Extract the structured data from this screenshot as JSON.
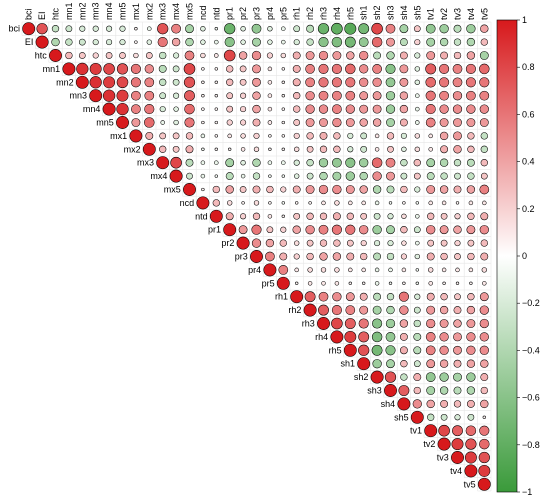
{
  "chart_data": {
    "type": "heatmap",
    "subtype": "correlation-upper-circle",
    "title": "",
    "variables": [
      "bci",
      "EI",
      "htc",
      "mn1",
      "mn2",
      "mn3",
      "mn4",
      "mn5",
      "mx1",
      "mx2",
      "mx3",
      "mx4",
      "mx5",
      "ncd",
      "ntd",
      "pr1",
      "pr2",
      "pr3",
      "pr4",
      "pr5",
      "rh1",
      "rh2",
      "rh3",
      "rh4",
      "rh5",
      "sh1",
      "sh2",
      "sh3",
      "sh4",
      "sh5",
      "tv1",
      "tv2",
      "tv3",
      "tv4",
      "tv5"
    ],
    "colorbar": {
      "ticks": [
        1,
        0.8,
        0.6,
        0.4,
        0.2,
        0,
        -0.2,
        -0.4,
        -0.6,
        -0.8,
        -1
      ],
      "tick_labels": [
        "1",
        "0.8",
        "0.6",
        "0.4",
        "0.2",
        "0",
        "−0.2",
        "−0.4",
        "−0.6",
        "−0.8",
        "−1"
      ],
      "range": [
        -1,
        1
      ],
      "colors": {
        "positive": "#d7191c",
        "zero": "#ffffff",
        "negative": "#3a9a3a"
      }
    },
    "rows": [
      {
        "var": "bci",
        "values": [
          1.0,
          0.75,
          -0.3,
          -0.25,
          -0.2,
          -0.2,
          -0.2,
          -0.2,
          0.05,
          -0.1,
          0.75,
          0.55,
          -0.45,
          -0.15,
          -0.05,
          -0.75,
          -0.15,
          -0.55,
          -0.15,
          -0.1,
          -0.25,
          -0.35,
          -0.75,
          -0.8,
          -0.85,
          -0.7,
          0.8,
          0.55,
          -0.45,
          0.25,
          -0.55,
          -0.5,
          -0.35,
          -0.5,
          0.4
        ]
      },
      {
        "var": "EI",
        "values": [
          1.0,
          -0.4,
          -0.3,
          -0.25,
          -0.2,
          -0.2,
          -0.2,
          0.05,
          -0.15,
          0.6,
          0.4,
          -0.4,
          -0.15,
          -0.1,
          -0.6,
          -0.15,
          -0.45,
          -0.15,
          -0.1,
          -0.2,
          -0.3,
          -0.6,
          -0.65,
          -0.7,
          -0.55,
          0.65,
          0.45,
          -0.35,
          0.2,
          -0.45,
          -0.4,
          -0.3,
          -0.4,
          0.3
        ]
      },
      {
        "var": "htc",
        "values": [
          1.0,
          0.3,
          0.25,
          0.2,
          0.25,
          0.25,
          0.15,
          0.25,
          -0.3,
          -0.2,
          0.55,
          0.15,
          0.1,
          0.8,
          0.4,
          0.5,
          0.2,
          0.15,
          0.35,
          0.45,
          0.5,
          0.45,
          0.4,
          0.5,
          -0.35,
          -0.4,
          0.35,
          -0.2,
          0.45,
          0.35,
          0.3,
          0.4,
          -0.45
        ]
      },
      {
        "var": "mn1",
        "values": [
          1.0,
          0.9,
          0.85,
          0.8,
          0.75,
          0.6,
          0.5,
          -0.35,
          -0.25,
          0.8,
          0.05,
          0.05,
          0.3,
          0.25,
          0.45,
          0.1,
          0.05,
          0.35,
          0.55,
          0.6,
          0.6,
          0.65,
          0.5,
          0.55,
          -0.6,
          0.45,
          -0.15,
          0.7,
          0.6,
          0.55,
          0.6,
          0.65
        ]
      },
      {
        "var": "mn2",
        "values": [
          1.0,
          0.9,
          0.85,
          0.8,
          0.6,
          0.55,
          -0.3,
          -0.25,
          0.75,
          0.05,
          0.05,
          0.3,
          0.25,
          0.45,
          0.1,
          0.05,
          0.35,
          0.55,
          0.6,
          0.6,
          0.6,
          0.5,
          0.5,
          -0.55,
          0.45,
          -0.15,
          0.65,
          0.6,
          0.55,
          0.6,
          0.6
        ]
      },
      {
        "var": "mn3",
        "values": [
          1.0,
          0.9,
          0.85,
          0.55,
          0.55,
          -0.25,
          -0.2,
          0.7,
          0.05,
          0.05,
          0.25,
          0.2,
          0.4,
          0.1,
          0.05,
          0.3,
          0.5,
          0.55,
          0.55,
          0.55,
          0.45,
          0.45,
          -0.5,
          0.4,
          -0.1,
          0.6,
          0.55,
          0.5,
          0.55,
          0.55
        ]
      },
      {
        "var": "mn4",
        "values": [
          1.0,
          0.9,
          0.55,
          0.6,
          -0.2,
          -0.15,
          0.65,
          0.05,
          0.05,
          0.25,
          0.2,
          0.4,
          0.1,
          0.05,
          0.3,
          0.5,
          0.5,
          0.55,
          0.5,
          0.45,
          0.45,
          -0.5,
          0.4,
          -0.1,
          0.6,
          0.5,
          0.5,
          0.5,
          0.5
        ]
      },
      {
        "var": "mn5",
        "values": [
          1.0,
          0.45,
          0.65,
          -0.1,
          -0.15,
          0.6,
          0.05,
          0.05,
          0.2,
          0.2,
          0.35,
          0.1,
          0.05,
          0.25,
          0.45,
          0.45,
          0.5,
          0.45,
          0.4,
          0.4,
          -0.45,
          0.35,
          -0.1,
          0.55,
          0.45,
          0.45,
          0.45,
          0.45
        ]
      },
      {
        "var": "mx1",
        "values": [
          1.0,
          0.35,
          0.25,
          0.25,
          0.3,
          -0.1,
          0.05,
          0.1,
          0.15,
          0.2,
          0.05,
          0.05,
          0.2,
          0.3,
          0.35,
          0.3,
          -0.2,
          -0.25,
          0.1,
          0.3,
          -0.2,
          0.15,
          0.1,
          0.4,
          0.45,
          0.3,
          -0.3
        ]
      },
      {
        "var": "mx2",
        "values": [
          1.0,
          0.3,
          0.25,
          0.35,
          -0.05,
          0.05,
          0.05,
          0.1,
          0.15,
          0.05,
          0.05,
          0.15,
          0.25,
          0.3,
          0.3,
          -0.2,
          -0.25,
          0.1,
          0.25,
          -0.15,
          0.15,
          0.1,
          0.35,
          0.4,
          0.3,
          -0.3
        ]
      },
      {
        "var": "mx3",
        "values": [
          1.0,
          0.8,
          -0.35,
          -0.1,
          -0.1,
          -0.45,
          -0.15,
          -0.4,
          -0.1,
          -0.1,
          -0.2,
          -0.3,
          -0.5,
          -0.55,
          -0.6,
          -0.5,
          0.65,
          0.55,
          -0.3,
          0.3,
          -0.45,
          -0.4,
          -0.3,
          -0.35,
          0.3
        ]
      },
      {
        "var": "mx4",
        "values": [
          1.0,
          -0.25,
          -0.1,
          -0.05,
          -0.35,
          -0.1,
          -0.3,
          -0.05,
          -0.05,
          -0.15,
          -0.25,
          -0.4,
          -0.45,
          -0.5,
          -0.4,
          0.5,
          0.45,
          -0.25,
          0.25,
          -0.35,
          -0.3,
          -0.25,
          -0.3,
          0.25
        ]
      },
      {
        "var": "mx5",
        "values": [
          1.0,
          0.05,
          0.3,
          0.4,
          0.25,
          0.35,
          0.3,
          0.2,
          0.35,
          0.45,
          0.5,
          0.5,
          0.45,
          0.4,
          -0.4,
          -0.35,
          0.3,
          -0.2,
          0.45,
          0.4,
          0.35,
          0.4,
          0.55
        ]
      },
      {
        "var": "ncd",
        "values": [
          1.0,
          0.3,
          0.15,
          0.05,
          0.15,
          0.05,
          -0.05,
          0.05,
          0.05,
          0.1,
          0.15,
          0.1,
          0.1,
          -0.1,
          -0.05,
          0.05,
          -0.05,
          0.1,
          0.1,
          0.05,
          0.1,
          0.1
        ]
      },
      {
        "var": "ntd",
        "values": [
          1.0,
          0.35,
          0.2,
          0.3,
          0.1,
          0.05,
          0.25,
          0.3,
          0.3,
          0.35,
          0.3,
          0.25,
          -0.25,
          -0.2,
          0.15,
          -0.1,
          0.3,
          0.25,
          0.2,
          0.3,
          0.35
        ]
      },
      {
        "var": "pr1",
        "values": [
          1.0,
          0.45,
          0.6,
          0.25,
          0.2,
          0.4,
          0.5,
          0.55,
          0.6,
          0.6,
          0.5,
          -0.5,
          -0.45,
          0.3,
          -0.25,
          0.5,
          0.45,
          0.4,
          0.45,
          0.5
        ]
      },
      {
        "var": "pr2",
        "values": [
          1.0,
          0.5,
          0.4,
          0.3,
          0.15,
          0.25,
          0.3,
          0.3,
          0.25,
          0.2,
          -0.2,
          -0.2,
          0.15,
          -0.1,
          0.25,
          0.25,
          0.2,
          0.25,
          0.3
        ]
      },
      {
        "var": "pr3",
        "values": [
          1.0,
          0.55,
          0.35,
          0.2,
          0.3,
          0.4,
          0.4,
          0.35,
          0.3,
          -0.35,
          -0.3,
          0.2,
          -0.15,
          0.35,
          0.3,
          0.25,
          0.3,
          0.35
        ]
      },
      {
        "var": "pr4",
        "values": [
          1.0,
          0.55,
          0.1,
          0.15,
          0.15,
          0.15,
          0.1,
          0.1,
          -0.1,
          -0.1,
          0.1,
          -0.05,
          0.15,
          0.1,
          0.1,
          0.1,
          0.15
        ]
      },
      {
        "var": "pr5",
        "values": [
          1.0,
          0.05,
          0.1,
          0.1,
          0.1,
          0.05,
          0.05,
          -0.1,
          -0.05,
          0.05,
          -0.05,
          0.1,
          0.05,
          0.05,
          0.05,
          0.1
        ]
      },
      {
        "var": "rh1",
        "values": [
          1.0,
          0.7,
          0.55,
          0.5,
          0.45,
          0.35,
          -0.35,
          -0.3,
          0.6,
          -0.2,
          0.35,
          0.3,
          0.25,
          0.3,
          0.45
        ]
      },
      {
        "var": "rh2",
        "values": [
          1.0,
          0.7,
          0.6,
          0.55,
          0.45,
          -0.45,
          -0.4,
          0.5,
          -0.25,
          0.45,
          0.4,
          0.35,
          0.4,
          0.5
        ]
      },
      {
        "var": "rh3",
        "values": [
          1.0,
          0.8,
          0.7,
          0.6,
          -0.6,
          -0.5,
          0.4,
          -0.3,
          0.5,
          0.45,
          0.4,
          0.45,
          0.5
        ]
      },
      {
        "var": "rh4",
        "values": [
          1.0,
          0.85,
          0.7,
          -0.65,
          -0.55,
          0.35,
          -0.35,
          0.55,
          0.5,
          0.45,
          0.5,
          0.5
        ]
      },
      {
        "var": "rh5",
        "values": [
          1.0,
          0.75,
          -0.7,
          -0.6,
          0.35,
          -0.35,
          0.55,
          0.5,
          0.45,
          0.5,
          0.5
        ]
      },
      {
        "var": "sh1",
        "values": [
          1.0,
          -0.5,
          -0.45,
          0.3,
          -0.25,
          0.45,
          0.4,
          0.35,
          0.4,
          0.4
        ]
      },
      {
        "var": "sh2",
        "values": [
          1.0,
          0.75,
          -0.3,
          0.35,
          -0.55,
          -0.5,
          -0.45,
          -0.5,
          0.35
        ]
      },
      {
        "var": "sh3",
        "values": [
          1.0,
          0.7,
          0.3,
          -0.45,
          -0.4,
          -0.35,
          -0.4,
          0.3
        ]
      },
      {
        "var": "sh4",
        "values": [
          1.0,
          0.5,
          0.4,
          0.35,
          0.3,
          0.35,
          0.4
        ]
      },
      {
        "var": "sh5",
        "values": [
          1.0,
          -0.3,
          -0.25,
          -0.2,
          -0.25,
          0.05
        ]
      },
      {
        "var": "tv1",
        "values": [
          1.0,
          0.8,
          0.7,
          0.65,
          0.6
        ]
      },
      {
        "var": "tv2",
        "values": [
          1.0,
          0.85,
          0.75,
          0.65
        ]
      },
      {
        "var": "tv3",
        "values": [
          1.0,
          0.85,
          0.75
        ]
      },
      {
        "var": "tv4",
        "values": [
          1.0,
          0.85
        ]
      },
      {
        "var": "tv5",
        "values": [
          1.0
        ]
      }
    ]
  }
}
